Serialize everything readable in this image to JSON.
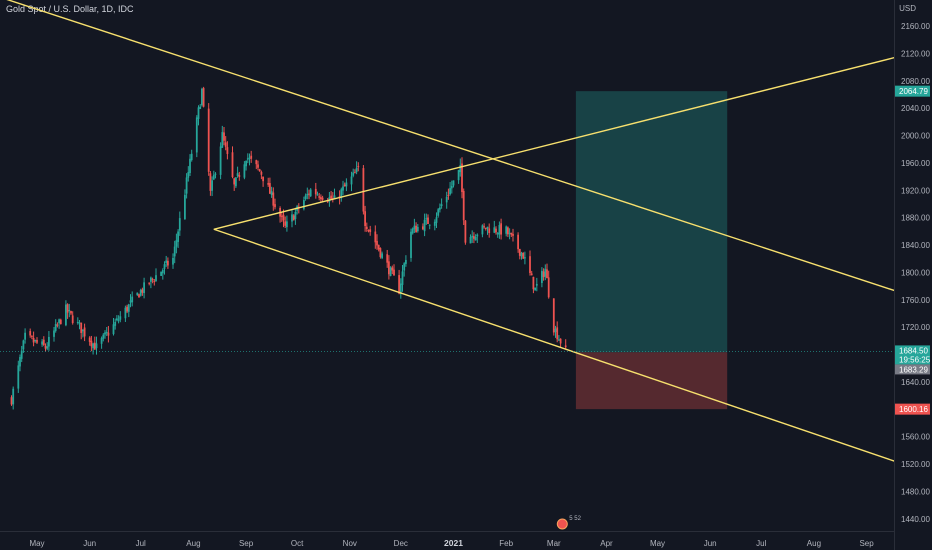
{
  "header": {
    "symbol_title": "Gold Spot / U.S. Dollar, 1D, IDC",
    "currency": "USD"
  },
  "colors": {
    "background": "#131722",
    "up_candle": "#26a69a",
    "down_candle": "#ef5350",
    "trendline": "#f7e06e",
    "target_zone": "#26a69a",
    "stop_zone": "#ef5350",
    "axis_text": "#b2b5be"
  },
  "price_tags": {
    "target": "2064.79",
    "last_price": "1684.50",
    "countdown": "19:56:25",
    "entry": "1683.29",
    "stop": "1600.16"
  },
  "badge": {
    "label": "5 52"
  },
  "chart_data": {
    "type": "candlestick",
    "title": "Gold Spot / U.S. Dollar, 1D, IDC",
    "ylabel": "USD",
    "ylim": [
      1420,
      2190
    ],
    "yticks": [
      2160,
      2120,
      2080,
      2040,
      2000,
      1960,
      1920,
      1880,
      1840,
      1800,
      1760,
      1720,
      1680,
      1640,
      1600,
      1560,
      1520,
      1480,
      1440
    ],
    "xticks": [
      "May",
      "Jun",
      "Jul",
      "Aug",
      "Sep",
      "Oct",
      "Nov",
      "Dec",
      "2021",
      "Feb",
      "Mar",
      "Apr",
      "May",
      "Jun",
      "Jul",
      "Aug",
      "Sep"
    ],
    "price_anchors": [
      {
        "date": "2020-04-16",
        "price": 1615
      },
      {
        "date": "2020-04-24",
        "price": 1705
      },
      {
        "date": "2020-05-06",
        "price": 1690
      },
      {
        "date": "2020-05-18",
        "price": 1745
      },
      {
        "date": "2020-06-05",
        "price": 1690
      },
      {
        "date": "2020-06-30",
        "price": 1770
      },
      {
        "date": "2020-07-20",
        "price": 1820
      },
      {
        "date": "2020-07-30",
        "price": 1960
      },
      {
        "date": "2020-08-06",
        "price": 2065
      },
      {
        "date": "2020-08-11",
        "price": 1915
      },
      {
        "date": "2020-08-18",
        "price": 2000
      },
      {
        "date": "2020-08-25",
        "price": 1925
      },
      {
        "date": "2020-09-01",
        "price": 1970
      },
      {
        "date": "2020-09-10",
        "price": 1945
      },
      {
        "date": "2020-09-24",
        "price": 1865
      },
      {
        "date": "2020-10-09",
        "price": 1920
      },
      {
        "date": "2020-10-23",
        "price": 1905
      },
      {
        "date": "2020-11-06",
        "price": 1950
      },
      {
        "date": "2020-11-10",
        "price": 1875
      },
      {
        "date": "2020-11-24",
        "price": 1805
      },
      {
        "date": "2020-11-30",
        "price": 1775
      },
      {
        "date": "2020-12-07",
        "price": 1860
      },
      {
        "date": "2020-12-21",
        "price": 1880
      },
      {
        "date": "2021-01-05",
        "price": 1950
      },
      {
        "date": "2021-01-08",
        "price": 1850
      },
      {
        "date": "2021-01-20",
        "price": 1865
      },
      {
        "date": "2021-02-01",
        "price": 1860
      },
      {
        "date": "2021-02-11",
        "price": 1825
      },
      {
        "date": "2021-02-18",
        "price": 1775
      },
      {
        "date": "2021-02-24",
        "price": 1805
      },
      {
        "date": "2021-03-01",
        "price": 1720
      },
      {
        "date": "2021-03-08",
        "price": 1684
      }
    ],
    "trendlines": [
      {
        "from": {
          "date": "2020-03-06",
          "price": 2230
        },
        "to": {
          "date": "2021-10-10",
          "price": 1755
        }
      },
      {
        "from": {
          "date": "2020-08-13",
          "price": 1863
        },
        "to": {
          "date": "2021-10-10",
          "price": 1505
        }
      },
      {
        "from": {
          "date": "2020-08-13",
          "price": 1863
        },
        "to": {
          "date": "2021-10-10",
          "price": 2128
        }
      }
    ],
    "position": {
      "start": "2021-03-14",
      "end": "2021-06-11",
      "target": 2064.79,
      "entry": 1683.29,
      "stop": 1600.16
    },
    "last_price": 1684.5
  }
}
